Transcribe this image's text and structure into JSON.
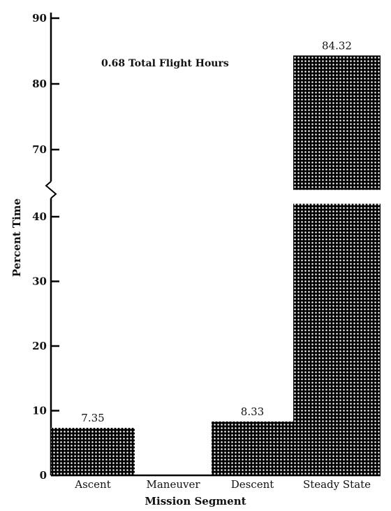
{
  "chart_data": {
    "type": "bar",
    "categories": [
      "Ascent",
      "Maneuver",
      "Descent",
      "Steady State"
    ],
    "values": [
      7.35,
      0,
      8.33,
      84.32
    ],
    "data_labels": [
      "7.35",
      "",
      "8.33",
      "84.32"
    ],
    "xlabel": "Mission Segment",
    "ylabel": "Percent Time",
    "annotation": "0.68 Total Flight Hours",
    "y_axis_break": [
      42,
      66
    ],
    "y_ticks": [
      0,
      10,
      20,
      30,
      40,
      70,
      80,
      90
    ],
    "y_tick_labels": [
      "0",
      "10",
      "20",
      "30",
      "40",
      "70",
      "80",
      "90"
    ],
    "ylim": [
      0,
      90
    ],
    "grid": false,
    "bar_fill": "dotted-black",
    "colors": {
      "bar": "#000000",
      "dot": "#ffffff",
      "axis": "#000000"
    }
  }
}
